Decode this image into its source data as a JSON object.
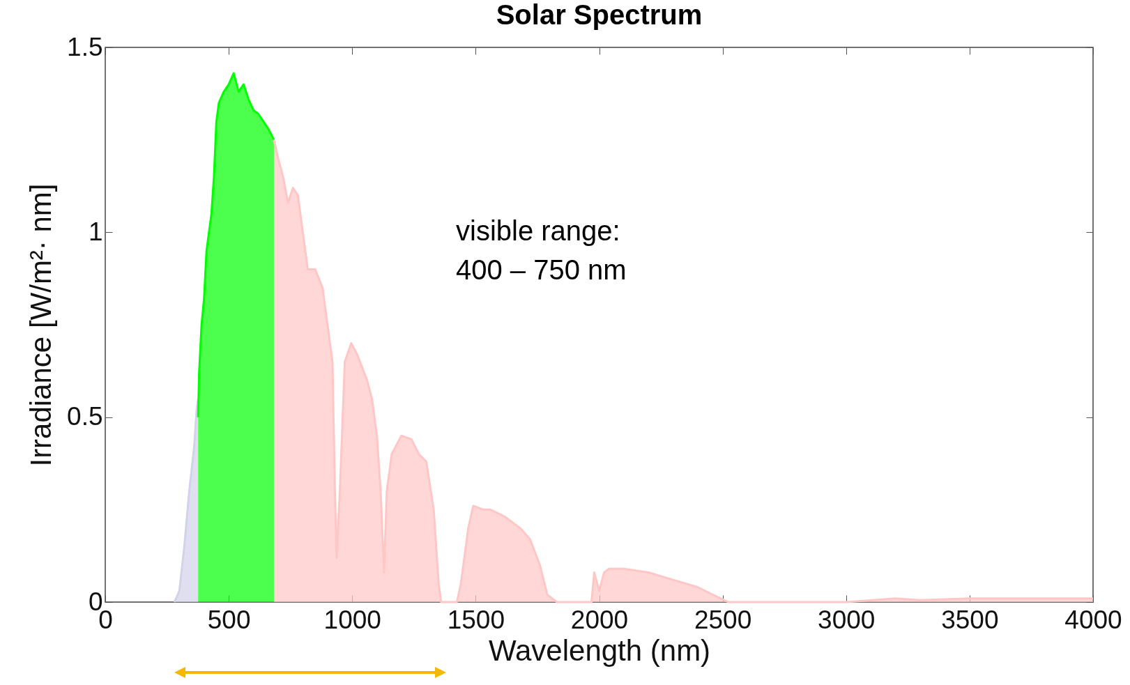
{
  "chart_data": {
    "type": "area",
    "title": "Solar Spectrum",
    "xlabel": "Wavelength (nm)",
    "ylabel": "Irradiance [W/m²· nm]",
    "annotations": [
      "visible range:",
      "400 – 750 nm"
    ],
    "xlim": [
      0,
      4000
    ],
    "xticks": [
      0,
      500,
      1000,
      1500,
      2000,
      2500,
      3000,
      3500,
      4000
    ],
    "ylim": [
      0,
      1.5
    ],
    "yticks": [
      0,
      0.5,
      1,
      1.5
    ],
    "grid": false,
    "legend": false,
    "series": [
      {
        "color": "#d2d2e8",
        "x": [
          280,
          300,
          320,
          340,
          360,
          370,
          376
        ],
        "values": [
          0,
          0.03,
          0.15,
          0.3,
          0.42,
          0.52,
          0.55
        ]
      },
      {
        "color": "#00ff00",
        "x": [
          376,
          380,
          390,
          400,
          410,
          420,
          430,
          440,
          450,
          460,
          480,
          500,
          520,
          540,
          560,
          580,
          600,
          620,
          640,
          660,
          683
        ],
        "values": [
          0.5,
          0.62,
          0.75,
          0.82,
          0.95,
          1.0,
          1.05,
          1.15,
          1.3,
          1.35,
          1.38,
          1.4,
          1.43,
          1.38,
          1.4,
          1.36,
          1.33,
          1.32,
          1.3,
          1.28,
          1.25
        ]
      },
      {
        "color": "#ffc6c6",
        "x": [
          683,
          700,
          720,
          740,
          760,
          780,
          800,
          820,
          850,
          880,
          900,
          920,
          930,
          937,
          950,
          970,
          996,
          1020,
          1060,
          1080,
          1100,
          1115,
          1129,
          1140,
          1160,
          1199,
          1240,
          1270,
          1300,
          1330,
          1350,
          1360,
          1424,
          1440,
          1470,
          1490,
          1532,
          1560,
          1620,
          1680,
          1720,
          1760,
          1790,
          1829,
          1969,
          1980,
          2000,
          2020,
          2040,
          2100,
          2200,
          2300,
          2400,
          2460,
          2523,
          3000,
          3200,
          3300,
          3500,
          4000
        ],
        "values": [
          1.25,
          1.2,
          1.15,
          1.08,
          1.12,
          1.1,
          1.0,
          0.9,
          0.9,
          0.85,
          0.75,
          0.65,
          0.3,
          0.12,
          0.3,
          0.65,
          0.7,
          0.67,
          0.6,
          0.55,
          0.45,
          0.3,
          0.08,
          0.3,
          0.4,
          0.45,
          0.44,
          0.4,
          0.38,
          0.25,
          0.05,
          0,
          0,
          0.05,
          0.2,
          0.26,
          0.25,
          0.25,
          0.23,
          0.2,
          0.17,
          0.1,
          0.02,
          0,
          0,
          0.08,
          0.03,
          0.08,
          0.09,
          0.09,
          0.08,
          0.06,
          0.04,
          0.02,
          0,
          0,
          0.01,
          0.005,
          0.01,
          0.01
        ]
      }
    ]
  }
}
